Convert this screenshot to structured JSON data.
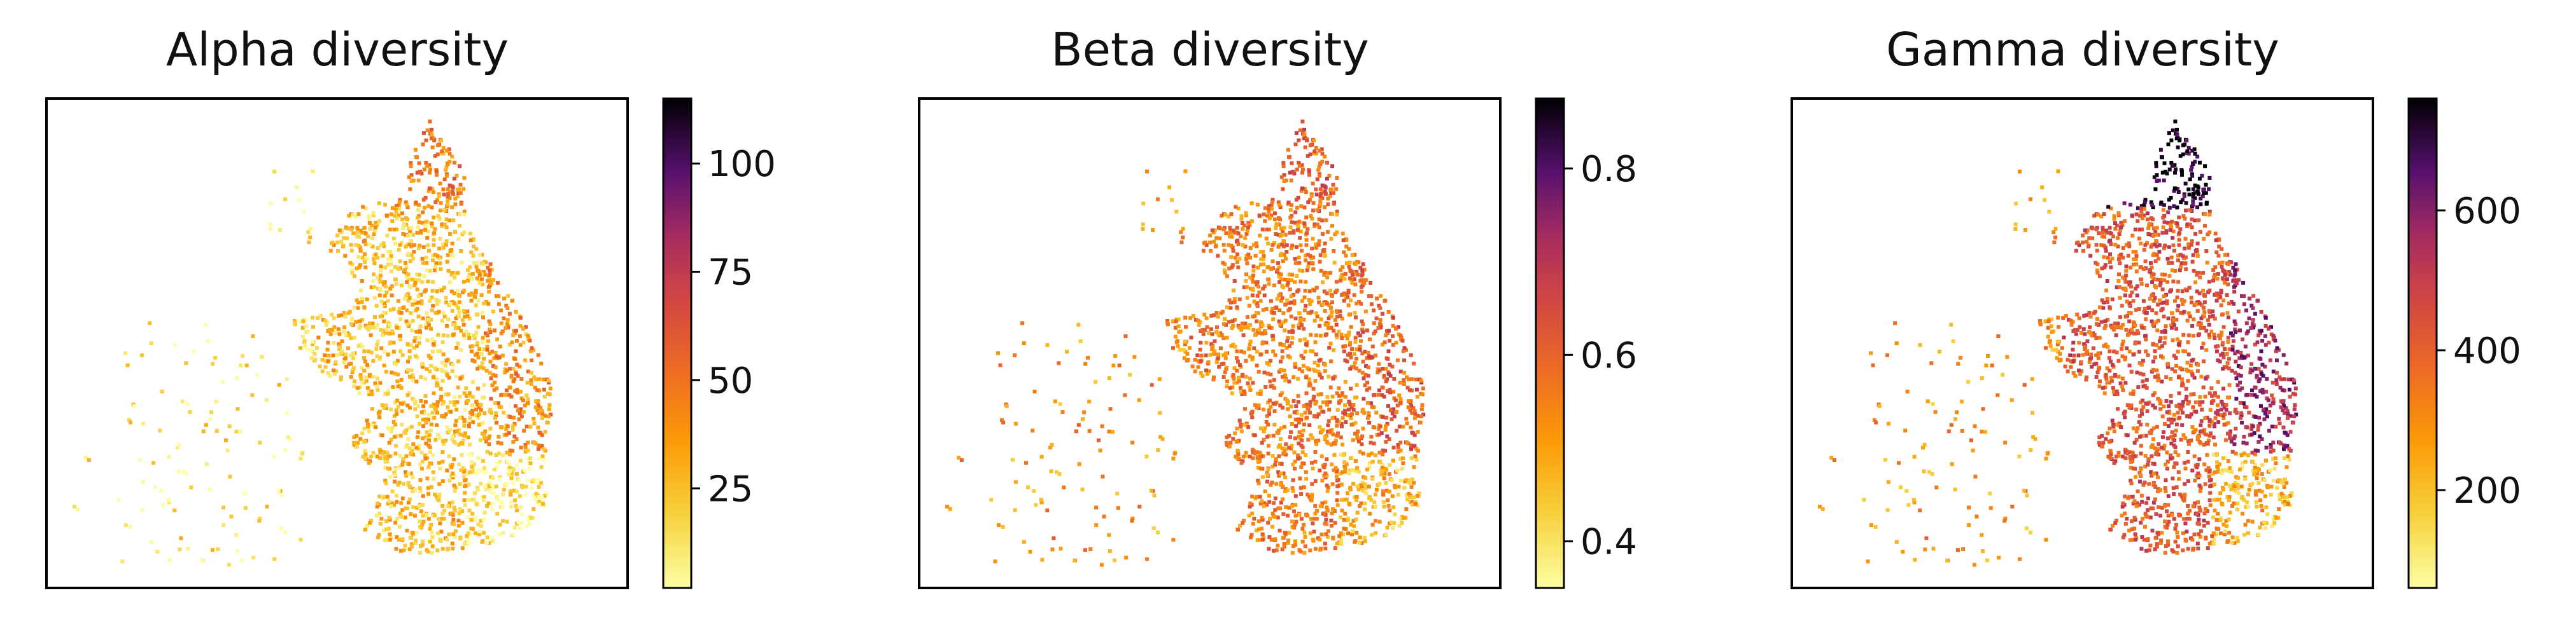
{
  "chart_data": [
    {
      "type": "scatter",
      "title": "Alpha diversity",
      "colormap": "inferno_r",
      "colorbar": {
        "range": [
          2,
          115
        ],
        "ticks": [
          25,
          50,
          75,
          100
        ],
        "tick_labels": [
          "25",
          "50",
          "75",
          "100"
        ]
      },
      "x_ticks": [],
      "y_ticks": [],
      "value_pattern": {
        "inland": 12,
        "coast": 40,
        "southeast": 10,
        "far_north": 45
      }
    },
    {
      "type": "scatter",
      "title": "Beta diversity",
      "colormap": "inferno_r",
      "colorbar": {
        "range": [
          0.35,
          0.875
        ],
        "ticks": [
          0.4,
          0.6,
          0.8
        ],
        "tick_labels": [
          "0.4",
          "0.6",
          "0.8"
        ]
      },
      "x_ticks": [],
      "y_ticks": [],
      "value_pattern": {
        "inland": 0.52,
        "coast": 0.6,
        "southeast": 0.48,
        "far_north": 0.6
      }
    },
    {
      "type": "scatter",
      "title": "Gamma diversity",
      "colormap": "inferno_r",
      "colorbar": {
        "range": [
          60,
          760
        ],
        "ticks": [
          200,
          400,
          600
        ],
        "tick_labels": [
          "200",
          "400",
          "600"
        ]
      },
      "x_ticks": [],
      "y_ticks": [],
      "value_pattern": {
        "inland": 280,
        "coast": 560,
        "southeast": 230,
        "far_north": 740
      }
    }
  ]
}
